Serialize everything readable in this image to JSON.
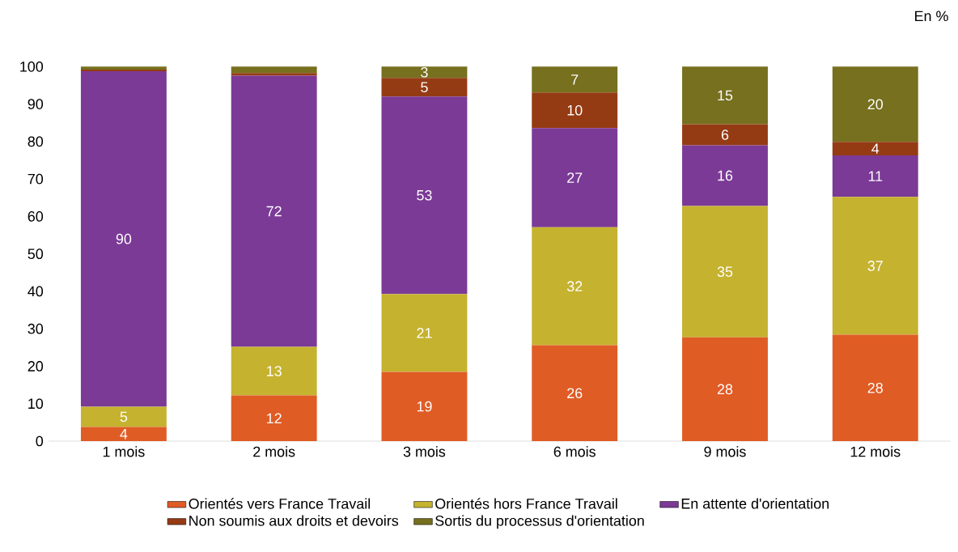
{
  "chart_data": {
    "type": "bar",
    "stacked": true,
    "categories": [
      "1 mois",
      "2 mois",
      "3 mois",
      "6 mois",
      "9 mois",
      "12 mois"
    ],
    "series": [
      {
        "name": "Orientés vers France Travail",
        "color": "#e05c25",
        "values": [
          3.8,
          12.2,
          18.5,
          25.6,
          27.7,
          28.4
        ],
        "value_labels": [
          "4",
          "12",
          "19",
          "26",
          "28",
          "28"
        ]
      },
      {
        "name": "Orientés hors France Travail",
        "color": "#c5b22f",
        "values": [
          5.4,
          13,
          20.8,
          31.5,
          35.1,
          36.8
        ],
        "value_labels": [
          "5",
          "13",
          "21",
          "32",
          "35",
          "37"
        ]
      },
      {
        "name": "En attente d'orientation",
        "color": "#7b3a96",
        "values": [
          89.6,
          72.4,
          52.7,
          26.5,
          16.2,
          11.1
        ],
        "value_labels": [
          "90",
          "72",
          "53",
          "27",
          "16",
          "11"
        ]
      },
      {
        "name": "Non soumis aux droits et devoirs",
        "color": "#953b14",
        "values": [
          0.4,
          0.7,
          5,
          9.5,
          5.6,
          3.6
        ],
        "value_labels": [
          null,
          null,
          "5",
          "10",
          "6",
          "4"
        ]
      },
      {
        "name": "Sortis du processus d'orientation",
        "color": "#76701f",
        "values": [
          0.8,
          1.7,
          3,
          6.9,
          15.4,
          20.1
        ],
        "value_labels": [
          null,
          null,
          "3",
          "7",
          "15",
          "20"
        ]
      }
    ],
    "ylim": [
      0,
      100
    ],
    "yticks": [
      0,
      10,
      20,
      30,
      40,
      50,
      60,
      70,
      80,
      90,
      100
    ],
    "grid": false,
    "legend": "bottom",
    "annotations": [
      "En %"
    ]
  }
}
